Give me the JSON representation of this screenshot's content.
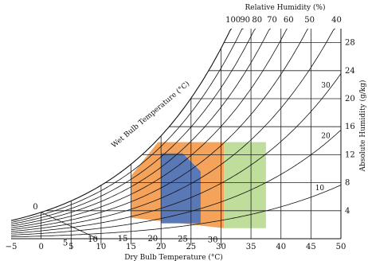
{
  "chart_data": {
    "type": "psychrometric",
    "xlabel": "Dry Bulb Temperature (°C)",
    "x_ticks": [
      -5,
      0,
      5,
      10,
      15,
      20,
      25,
      30,
      35,
      40,
      45,
      50
    ],
    "xlim": [
      -5,
      50
    ],
    "right_axis_label": "Absolute Humidity (g/kg)",
    "right_ticks": [
      4,
      8,
      12,
      16,
      20,
      24,
      28
    ],
    "ylim": [
      0,
      30
    ],
    "top_axis_label": "Relative Humidity (%)",
    "rh_curves": [
      {
        "rh": 100,
        "label": "100"
      },
      {
        "rh": 90,
        "label": "90"
      },
      {
        "rh": 80,
        "label": "80"
      },
      {
        "rh": 70,
        "label": "70"
      },
      {
        "rh": 60,
        "label": "60"
      },
      {
        "rh": 50,
        "label": "50"
      },
      {
        "rh": 40,
        "label": "40"
      },
      {
        "rh": 30,
        "label": ""
      },
      {
        "rh": 20,
        "label": ""
      },
      {
        "rh": 10,
        "label": ""
      }
    ],
    "wet_bulb_label": "Wet Bulb Temperature (°C)",
    "wet_bulb_lines": [
      {
        "t": 0,
        "label": "0"
      },
      {
        "t": 5,
        "label": "5"
      },
      {
        "t": 10,
        "label": "10"
      },
      {
        "t": 15,
        "label": "15"
      },
      {
        "t": 20,
        "label": "20"
      },
      {
        "t": 25,
        "label": "25"
      },
      {
        "t": 30,
        "label": "30"
      }
    ],
    "inner_labels": [
      {
        "text": "30",
        "t": 48,
        "rh": 30
      },
      {
        "text": "20",
        "t": 48,
        "rh": 20
      },
      {
        "text": "10",
        "t": 47,
        "rh": 10
      }
    ],
    "zones": [
      {
        "name": "",
        "color": "#f5a35a",
        "polygon": [
          [
            15,
            3
          ],
          [
            15,
            9
          ],
          [
            19.5,
            13.8
          ],
          [
            30.5,
            13.8
          ],
          [
            30.5,
            1.5
          ]
        ]
      },
      {
        "name": "",
        "color": "#bfdd9b",
        "polygon": [
          [
            30.5,
            1.5
          ],
          [
            30.5,
            13.8
          ],
          [
            37.5,
            13.8
          ],
          [
            37.5,
            1.5
          ]
        ]
      },
      {
        "name": "",
        "color": "#5a78b5",
        "polygon": [
          [
            20,
            2.2
          ],
          [
            20,
            12.2
          ],
          [
            23.6,
            12.2
          ],
          [
            26.6,
            9.6
          ],
          [
            26.6,
            2.2
          ]
        ]
      }
    ]
  }
}
